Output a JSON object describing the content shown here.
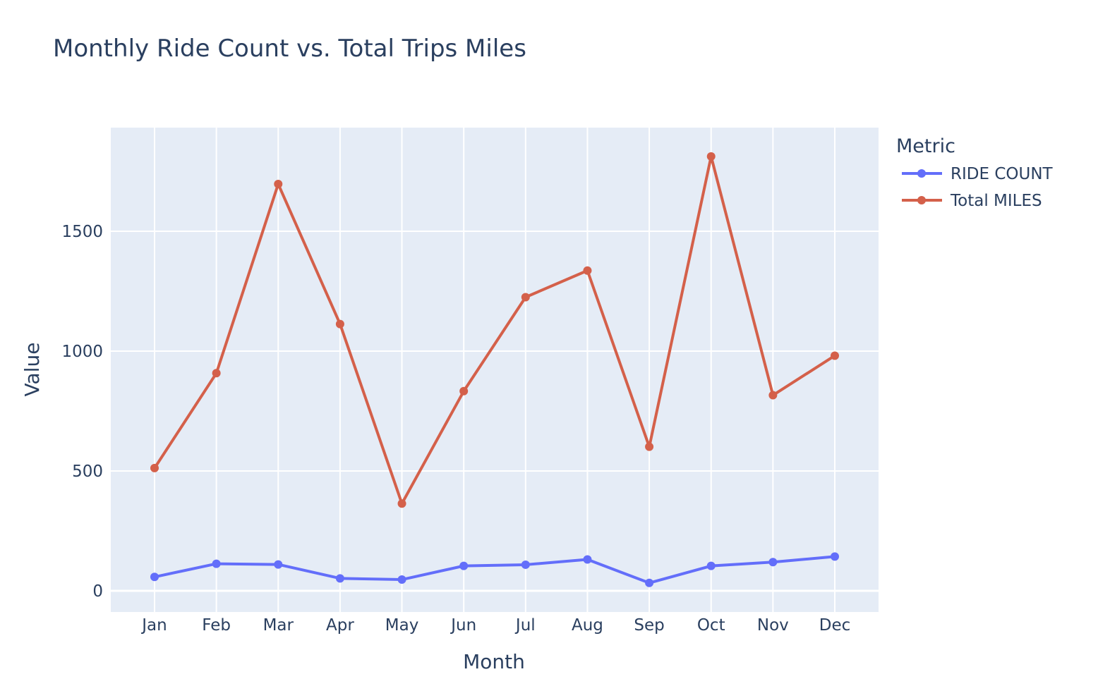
{
  "chart_data": {
    "type": "line",
    "title": "Monthly Ride Count vs. Total Trips Miles",
    "xlabel": "Month",
    "ylabel": "Value",
    "categories": [
      "Jan",
      "Feb",
      "Mar",
      "Apr",
      "May",
      "Jun",
      "Jul",
      "Aug",
      "Sep",
      "Oct",
      "Nov",
      "Dec"
    ],
    "yticks": [
      0,
      500,
      1000,
      1500
    ],
    "ylim": [
      -90,
      1930
    ],
    "grid": true,
    "legend": {
      "title": "Metric",
      "position": "top-right"
    },
    "series": [
      {
        "name": "RIDE COUNT",
        "color": "#636efa",
        "values": [
          58,
          113,
          110,
          52,
          47,
          104,
          109,
          131,
          33,
          104,
          120,
          143
        ]
      },
      {
        "name": "Total MILES",
        "color": "#d4604a",
        "values": [
          512,
          908,
          1697,
          1113,
          364,
          833,
          1225,
          1336,
          601,
          1812,
          816,
          981
        ]
      }
    ],
    "colors": {
      "plot_bg": "#e5ecf6",
      "grid": "#ffffff",
      "text": "#2a3f5f"
    }
  }
}
